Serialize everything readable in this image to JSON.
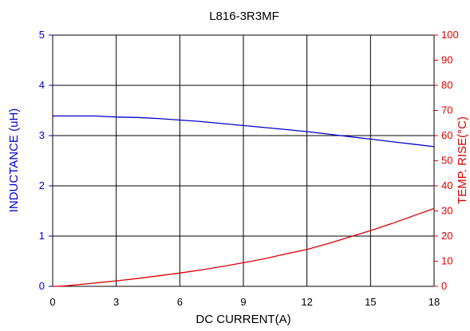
{
  "chart_data": {
    "type": "line",
    "title": "L816-3R3MF",
    "xlabel": "DC CURRENT(A)",
    "ylabel_left": "INDUCTANCE (uH)",
    "ylabel_right": "TEMP. RISE(°C)",
    "xlim": [
      0,
      18
    ],
    "ylim_left": [
      0,
      5
    ],
    "ylim_right": [
      0,
      100
    ],
    "x_ticks": [
      0,
      3,
      6,
      9,
      12,
      15,
      18
    ],
    "y_left_ticks": [
      0,
      1,
      2,
      3,
      4,
      5
    ],
    "y_right_ticks": [
      0,
      10,
      20,
      30,
      40,
      50,
      60,
      70,
      80,
      90,
      100
    ],
    "grid": true,
    "colors": {
      "inductance": "#0000cc",
      "temp_rise": "#dd0000"
    },
    "series": [
      {
        "axis": "left",
        "x": [
          0,
          1,
          2,
          2.5,
          3,
          4,
          5,
          6,
          7,
          8,
          9,
          10,
          11,
          12,
          13,
          14,
          15,
          16,
          17,
          18
        ],
        "values": [
          3.39,
          3.39,
          3.39,
          3.38,
          3.37,
          3.36,
          3.34,
          3.31,
          3.28,
          3.24,
          3.2,
          3.16,
          3.12,
          3.08,
          3.03,
          2.98,
          2.93,
          2.88,
          2.83,
          2.78
        ]
      },
      {
        "axis": "right",
        "x": [
          0,
          0.5,
          1,
          2,
          3,
          4,
          5,
          6,
          7,
          8,
          9,
          10,
          11,
          12,
          13,
          14,
          15,
          16,
          17,
          18
        ],
        "values": [
          0,
          0.1,
          0.5,
          1.3,
          2.2,
          3.1,
          4.2,
          5.3,
          6.5,
          7.9,
          9.4,
          11.0,
          12.9,
          14.7,
          17.0,
          19.6,
          22.2,
          25.0,
          28.0,
          31.0
        ]
      }
    ]
  }
}
